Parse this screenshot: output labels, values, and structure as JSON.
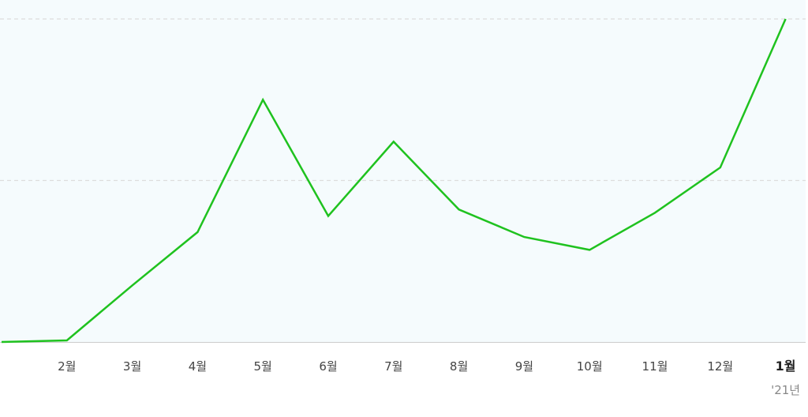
{
  "chart_data": {
    "type": "line",
    "title": "",
    "xlabel": "",
    "ylabel": "",
    "x": [
      "1월",
      "2월",
      "3월",
      "4월",
      "5월",
      "6월",
      "7월",
      "8월",
      "9월",
      "10월",
      "11월",
      "12월",
      "1월"
    ],
    "x_tick_labels": [
      "2월",
      "3월",
      "4월",
      "5월",
      "6월",
      "7월",
      "8월",
      "9월",
      "10월",
      "11월",
      "12월",
      "1월"
    ],
    "year_marker": "'21년",
    "series": [
      {
        "values": [
          0,
          0.5,
          17.5,
          34,
          75,
          39,
          62,
          41,
          32.5,
          28.5,
          40,
          54,
          100
        ],
        "color": "#1fc21f"
      }
    ],
    "ylim": [
      0,
      100
    ],
    "y_gridlines": [
      50,
      100
    ],
    "grid": true,
    "legend": "none",
    "plot_background": "#f5fbfd",
    "gridline_color": "#dddddd",
    "axis_color": "#cccccc"
  }
}
